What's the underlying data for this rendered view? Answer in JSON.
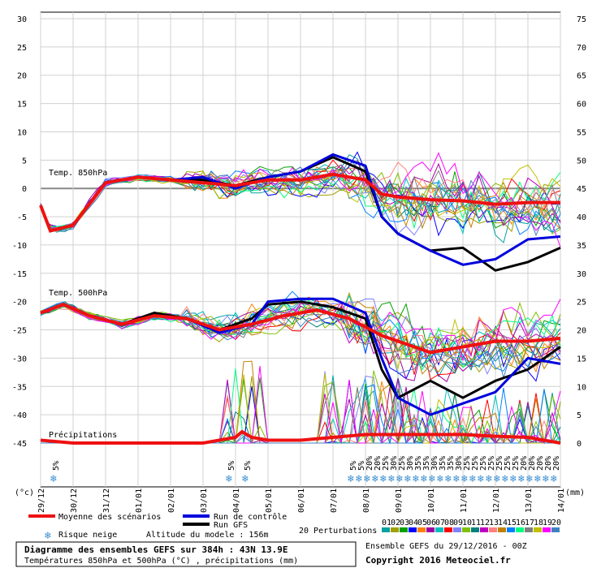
{
  "chart_data": {
    "type": "line",
    "left_axis": {
      "unit": "(°c)",
      "min": -45,
      "max": 30,
      "ticks": [
        30,
        25,
        20,
        15,
        10,
        5,
        0,
        -5,
        -10,
        -15,
        -20,
        -25,
        -30,
        -35,
        -40,
        -45
      ]
    },
    "right_axis": {
      "unit": "(mm)",
      "min": 0,
      "max": 75,
      "ticks": [
        75,
        70,
        65,
        60,
        55,
        50,
        45,
        40,
        35,
        30,
        25,
        20,
        15,
        10,
        5,
        0
      ]
    },
    "dates": [
      "29/12",
      "30/12",
      "31/12",
      "01/01",
      "02/01",
      "03/01",
      "04/01",
      "05/01",
      "06/01",
      "07/01",
      "08/01",
      "09/01",
      "10/01",
      "11/01",
      "12/01",
      "13/01",
      "14/01"
    ],
    "section_labels": {
      "t850": "Temp. 850hPa",
      "t500": "Temp. 500hPa",
      "precip": "Précipitations"
    },
    "series": [
      {
        "name": "Moyenne des scénarios",
        "color": "#ee1111",
        "width": 4,
        "t850": [
          [
            0,
            -3
          ],
          [
            0.3,
            -7.5
          ],
          [
            1,
            -6.5
          ],
          [
            2,
            1
          ],
          [
            3,
            2
          ],
          [
            4,
            1.5
          ],
          [
            5,
            1
          ],
          [
            6,
            0.5
          ],
          [
            7,
            1.5
          ],
          [
            8,
            1.5
          ],
          [
            9,
            2.5
          ],
          [
            10,
            1.5
          ],
          [
            10.5,
            -1
          ],
          [
            11,
            -1.5
          ],
          [
            12,
            -2
          ],
          [
            13,
            -2.2
          ],
          [
            14,
            -2.8
          ],
          [
            15,
            -2.5
          ],
          [
            16,
            -2.5
          ]
        ],
        "t500": [
          [
            0,
            -22
          ],
          [
            0.7,
            -20.5
          ],
          [
            1.5,
            -22.5
          ],
          [
            2.5,
            -24
          ],
          [
            3.5,
            -22.5
          ],
          [
            4.5,
            -23
          ],
          [
            5.5,
            -25
          ],
          [
            6.5,
            -24
          ],
          [
            7.5,
            -22.5
          ],
          [
            8.5,
            -21.5
          ],
          [
            9.5,
            -23
          ],
          [
            10.5,
            -26
          ],
          [
            11.5,
            -28
          ],
          [
            12,
            -29
          ],
          [
            13,
            -28
          ],
          [
            14,
            -27
          ],
          [
            15,
            -27
          ],
          [
            16,
            -26.5
          ]
        ]
      },
      {
        "name": "Run de contrôle",
        "color": "#0000dd",
        "width": 3,
        "t850": [
          [
            0,
            -3
          ],
          [
            0.3,
            -7.5
          ],
          [
            1,
            -6.5
          ],
          [
            2,
            1
          ],
          [
            3,
            2
          ],
          [
            4,
            1.5
          ],
          [
            5,
            2
          ],
          [
            6,
            0
          ],
          [
            7,
            2
          ],
          [
            8,
            3
          ],
          [
            9,
            6
          ],
          [
            10,
            4
          ],
          [
            10.5,
            -5
          ],
          [
            11,
            -8
          ],
          [
            12,
            -11
          ],
          [
            13,
            -13.5
          ],
          [
            14,
            -12.5
          ],
          [
            15,
            -9
          ],
          [
            16,
            -8.5
          ]
        ],
        "t500": [
          [
            0,
            -22
          ],
          [
            0.7,
            -20.5
          ],
          [
            1.5,
            -22.5
          ],
          [
            2.5,
            -24
          ],
          [
            3.5,
            -22.5
          ],
          [
            4.5,
            -23
          ],
          [
            5.5,
            -25.5
          ],
          [
            6.5,
            -24
          ],
          [
            7,
            -20
          ],
          [
            8,
            -19.5
          ],
          [
            9,
            -19.5
          ],
          [
            10,
            -22
          ],
          [
            10.5,
            -30
          ],
          [
            11,
            -37
          ],
          [
            12,
            -40
          ],
          [
            13,
            -38
          ],
          [
            14,
            -36
          ],
          [
            15,
            -30
          ],
          [
            16,
            -31
          ]
        ]
      },
      {
        "name": "Run GFS",
        "color": "#000000",
        "width": 3,
        "t850": [
          [
            0,
            -3
          ],
          [
            0.3,
            -7.5
          ],
          [
            1,
            -6.5
          ],
          [
            2,
            1
          ],
          [
            3,
            2
          ],
          [
            4,
            1.5
          ],
          [
            5,
            1.5
          ],
          [
            6,
            0.5
          ],
          [
            7,
            2
          ],
          [
            8,
            3
          ],
          [
            9,
            5.5
          ],
          [
            10,
            3
          ],
          [
            10.5,
            -5
          ],
          [
            11,
            -8
          ],
          [
            12,
            -11
          ],
          [
            13,
            -10.5
          ],
          [
            14,
            -14.5
          ],
          [
            15,
            -13
          ],
          [
            16,
            -10.5
          ]
        ],
        "t500": [
          [
            0,
            -22
          ],
          [
            0.7,
            -20.5
          ],
          [
            1.5,
            -22.5
          ],
          [
            2.5,
            -24
          ],
          [
            3.5,
            -22
          ],
          [
            4.5,
            -23
          ],
          [
            5.5,
            -25
          ],
          [
            6.5,
            -23
          ],
          [
            7,
            -20.5
          ],
          [
            8,
            -20
          ],
          [
            9,
            -21
          ],
          [
            10,
            -23
          ],
          [
            10.5,
            -32
          ],
          [
            11,
            -37
          ],
          [
            12,
            -34
          ],
          [
            13,
            -37
          ],
          [
            14,
            -34
          ],
          [
            15,
            -32
          ],
          [
            16,
            -28
          ]
        ]
      }
    ],
    "perturbation_colors": [
      "#00a0a0",
      "#a0a000",
      "#00a000",
      "#0000ff",
      "#ff8000",
      "#a000a0",
      "#00c0c0",
      "#ff0000",
      "#8080ff",
      "#80c000",
      "#008080",
      "#c000c0",
      "#ff8080",
      "#c08000",
      "#0080ff",
      "#00ff80",
      "#808080",
      "#c0c000",
      "#ff00ff",
      "#4080c0"
    ],
    "precip_mean": [
      [
        0,
        -44.5
      ],
      [
        1,
        -45
      ],
      [
        5,
        -45
      ],
      [
        6,
        -44
      ],
      [
        6.2,
        -43
      ],
      [
        6.5,
        -44
      ],
      [
        7,
        -44.5
      ],
      [
        8,
        -44.5
      ],
      [
        9,
        -44
      ],
      [
        10,
        -43.5
      ],
      [
        11,
        -43.5
      ],
      [
        12,
        -43.5
      ],
      [
        13,
        -43.5
      ],
      [
        14,
        -43.8
      ],
      [
        15,
        -44
      ],
      [
        16,
        -45
      ]
    ],
    "snow_risk": [
      {
        "x": 0.45,
        "label": "5%"
      },
      {
        "x": 5.85,
        "label": "5%"
      },
      {
        "x": 6.35,
        "label": "5%"
      },
      {
        "x": 9.6,
        "label": "5%"
      },
      {
        "x": 9.85,
        "label": "5%"
      },
      {
        "x": 10.1,
        "label": "20%"
      },
      {
        "x": 10.35,
        "label": "20%"
      },
      {
        "x": 10.6,
        "label": "25%"
      },
      {
        "x": 10.85,
        "label": "30%"
      },
      {
        "x": 11.1,
        "label": "25%"
      },
      {
        "x": 11.35,
        "label": "30%"
      },
      {
        "x": 11.6,
        "label": "35%"
      },
      {
        "x": 11.85,
        "label": "35%"
      },
      {
        "x": 12.1,
        "label": "30%"
      },
      {
        "x": 12.35,
        "label": "35%"
      },
      {
        "x": 12.6,
        "label": "35%"
      },
      {
        "x": 12.85,
        "label": "30%"
      },
      {
        "x": 13.1,
        "label": "25%"
      },
      {
        "x": 13.35,
        "label": "25%"
      },
      {
        "x": 13.6,
        "label": "25%"
      },
      {
        "x": 13.85,
        "label": "25%"
      },
      {
        "x": 14.1,
        "label": "25%"
      },
      {
        "x": 14.35,
        "label": "25%"
      },
      {
        "x": 14.6,
        "label": "25%"
      },
      {
        "x": 14.85,
        "label": "20%"
      },
      {
        "x": 15.1,
        "label": "20%"
      },
      {
        "x": 15.35,
        "label": "20%"
      },
      {
        "x": 15.6,
        "label": "20%"
      },
      {
        "x": 15.85,
        "label": "20%"
      }
    ]
  },
  "legend": {
    "mean": "Moyenne des scénarios",
    "control": "Run de contrôle",
    "gfs": "Run GFS",
    "perturbations": "20 Perturbations",
    "snow": "Risque neige",
    "altitude": "Altitude du modele : 156m",
    "pert_numbers": [
      "01",
      "02",
      "03",
      "04",
      "05",
      "06",
      "07",
      "08",
      "09",
      "10",
      "11",
      "12",
      "13",
      "14",
      "15",
      "16",
      "17",
      "18",
      "19",
      "20"
    ]
  },
  "footer": {
    "title": "Diagramme des ensembles GEFS sur 384h : 43N 13.9E",
    "subtitle": "Températures 850hPa et 500hPa (°C) , précipitations (mm)",
    "run": "Ensemble GEFS du 29/12/2016 - 00Z",
    "copyright": "Copyright 2016 Meteociel.fr"
  }
}
